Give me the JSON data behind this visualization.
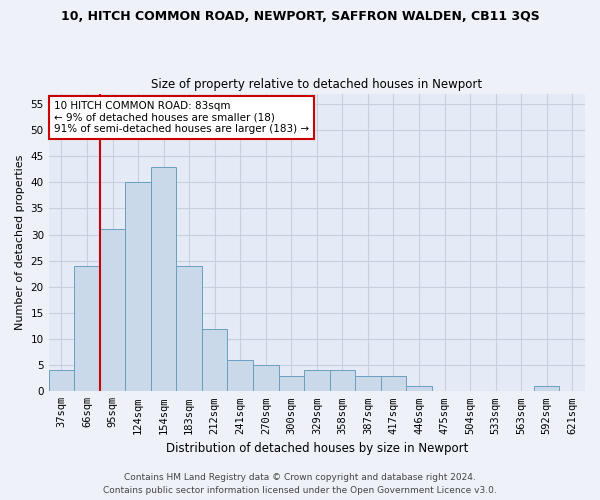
{
  "title": "10, HITCH COMMON ROAD, NEWPORT, SAFFRON WALDEN, CB11 3QS",
  "subtitle": "Size of property relative to detached houses in Newport",
  "xlabel": "Distribution of detached houses by size in Newport",
  "ylabel": "Number of detached properties",
  "categories": [
    "37sqm",
    "66sqm",
    "95sqm",
    "124sqm",
    "154sqm",
    "183sqm",
    "212sqm",
    "241sqm",
    "270sqm",
    "300sqm",
    "329sqm",
    "358sqm",
    "387sqm",
    "417sqm",
    "446sqm",
    "475sqm",
    "504sqm",
    "533sqm",
    "563sqm",
    "592sqm",
    "621sqm"
  ],
  "values": [
    4,
    24,
    31,
    40,
    43,
    24,
    12,
    6,
    5,
    3,
    4,
    4,
    3,
    3,
    1,
    0,
    0,
    0,
    0,
    1,
    0
  ],
  "bar_color": "#c9d9ea",
  "bar_edge_color": "#6a9fc0",
  "vline_pos": 1.5,
  "vline_color": "#cc0000",
  "annotation_text": "10 HITCH COMMON ROAD: 83sqm\n← 9% of detached houses are smaller (18)\n91% of semi-detached houses are larger (183) →",
  "annotation_box_facecolor": "#ffffff",
  "annotation_box_edgecolor": "#cc0000",
  "ylim": [
    0,
    57
  ],
  "yticks": [
    0,
    5,
    10,
    15,
    20,
    25,
    30,
    35,
    40,
    45,
    50,
    55
  ],
  "footer_line1": "Contains HM Land Registry data © Crown copyright and database right 2024.",
  "footer_line2": "Contains public sector information licensed under the Open Government Licence v3.0.",
  "bg_color": "#eef2f8",
  "plot_bg_color": "#e4eaf6",
  "grid_color": "#c8d0e0",
  "title_fontsize": 9,
  "subtitle_fontsize": 8.5,
  "ylabel_fontsize": 8,
  "xlabel_fontsize": 8.5,
  "tick_fontsize": 7.5,
  "annotation_fontsize": 7.5,
  "footer_fontsize": 6.5
}
